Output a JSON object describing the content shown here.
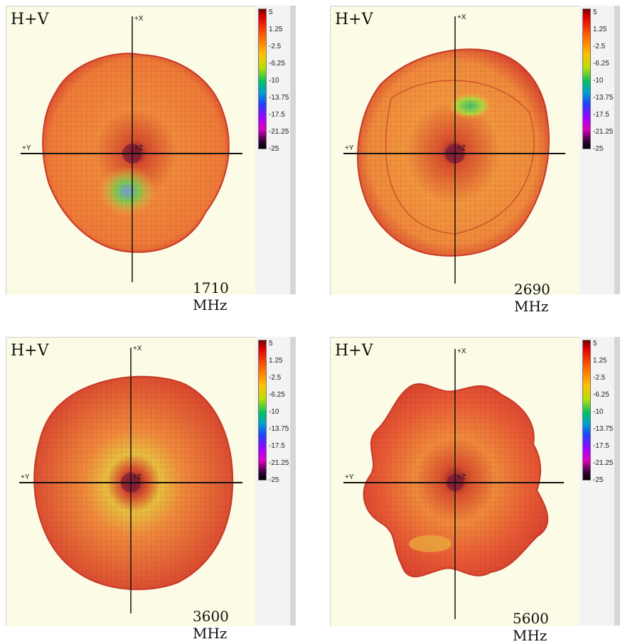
{
  "panels": [
    {
      "title": "H+V",
      "frequency": "1710 MHz",
      "axis_x": "+X",
      "axis_y": "+Y",
      "axis_z": "+Z"
    },
    {
      "title": "H+V",
      "frequency": "2690 MHz",
      "axis_x": "+X",
      "axis_y": "+Y",
      "axis_z": "+Z"
    },
    {
      "title": "H+V",
      "frequency": "3600 MHz",
      "axis_x": "+X",
      "axis_y": "+Y",
      "axis_z": "+Z"
    },
    {
      "title": "H+V",
      "frequency": "5600 MHz",
      "axis_x": "+X",
      "axis_y": "+Y",
      "axis_z": "+Z"
    }
  ],
  "colorbar": {
    "ticks": [
      "5",
      "1.25",
      "-2.5",
      "-6.25",
      "-10",
      "-13.75",
      "-17.5",
      "-21.25",
      "-25"
    ]
  },
  "colors": {
    "pattern_edge": "#d8432f",
    "pattern_fill": "#f08a3c",
    "background": "#fbfbe6"
  }
}
